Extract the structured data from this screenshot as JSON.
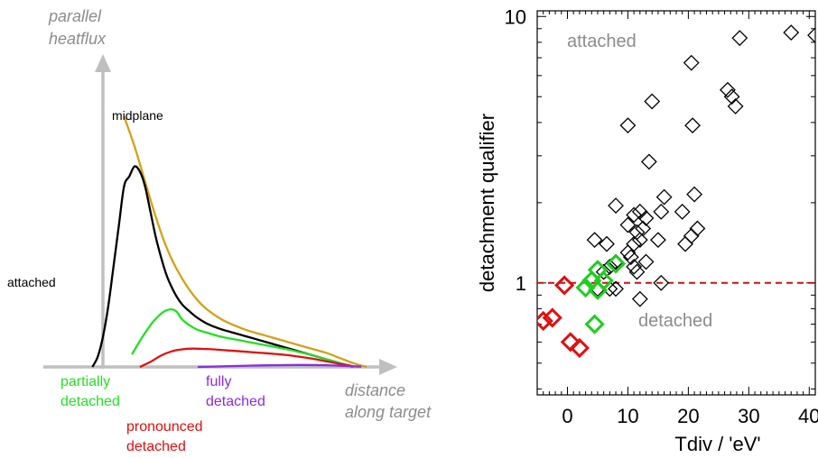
{
  "chart_data": [
    {
      "type": "line",
      "schematic": true,
      "axes": {
        "ylabel_line1": "parallel",
        "ylabel_line2": "heatflux",
        "xlabel_line1": "distance",
        "xlabel_line2": "along target",
        "axis_color": "#bfbfbf",
        "label_color": "#8c8c8c"
      },
      "annotations": {
        "midplane": "midplane",
        "attached": "attached",
        "partially_line1": "partially",
        "partially_line2": "detached",
        "pronounced_line1": "pronounced",
        "pronounced_line2": "detached",
        "fully_line1": "fully",
        "fully_line2": "detached"
      },
      "series": [
        {
          "key": "midplane",
          "color": "#d4a017",
          "x": [
            0.08,
            0.12,
            0.16,
            0.2,
            0.24,
            0.28,
            0.32,
            0.36,
            0.4,
            0.45,
            0.5,
            0.55,
            0.6,
            0.65,
            0.7,
            0.75,
            0.8,
            0.85,
            0.9,
            0.95,
            1.0
          ],
          "y": [
            1.0,
            0.88,
            0.74,
            0.6,
            0.48,
            0.39,
            0.32,
            0.265,
            0.225,
            0.19,
            0.165,
            0.145,
            0.13,
            0.115,
            0.1,
            0.085,
            0.07,
            0.055,
            0.035,
            0.015,
            0.0
          ]
        },
        {
          "key": "attached",
          "color": "#000000",
          "x": [
            -0.04,
            -0.02,
            0.0,
            0.02,
            0.04,
            0.06,
            0.08,
            0.1,
            0.12,
            0.14,
            0.16,
            0.18,
            0.2,
            0.22,
            0.24,
            0.26,
            0.28,
            0.3,
            0.33,
            0.36,
            0.4,
            0.45,
            0.5,
            0.55,
            0.6,
            0.65,
            0.7,
            0.75,
            0.8,
            0.85,
            0.9,
            0.95
          ],
          "y": [
            0.0,
            0.04,
            0.12,
            0.24,
            0.4,
            0.56,
            0.72,
            0.76,
            0.8,
            0.78,
            0.72,
            0.62,
            0.52,
            0.44,
            0.37,
            0.32,
            0.28,
            0.25,
            0.22,
            0.195,
            0.17,
            0.15,
            0.135,
            0.12,
            0.105,
            0.09,
            0.075,
            0.06,
            0.045,
            0.03,
            0.015,
            0.0
          ]
        },
        {
          "key": "partially_detached",
          "color": "#22e022",
          "x": [
            0.11,
            0.15,
            0.19,
            0.23,
            0.26,
            0.28,
            0.3,
            0.33,
            0.36,
            0.4,
            0.45,
            0.5,
            0.55,
            0.6,
            0.65,
            0.7,
            0.75,
            0.8,
            0.85,
            0.9,
            0.95
          ],
          "y": [
            0.05,
            0.12,
            0.18,
            0.22,
            0.23,
            0.22,
            0.19,
            0.165,
            0.148,
            0.135,
            0.12,
            0.11,
            0.1,
            0.09,
            0.08,
            0.07,
            0.058,
            0.045,
            0.03,
            0.015,
            0.0
          ]
        },
        {
          "key": "pronounced_detached",
          "color": "#e01010",
          "x": [
            0.14,
            0.18,
            0.22,
            0.26,
            0.3,
            0.34,
            0.38,
            0.42,
            0.46,
            0.5,
            0.55,
            0.6,
            0.65,
            0.7,
            0.75,
            0.8,
            0.85,
            0.9,
            0.95
          ],
          "y": [
            0.0,
            0.02,
            0.045,
            0.062,
            0.07,
            0.073,
            0.072,
            0.07,
            0.067,
            0.064,
            0.06,
            0.056,
            0.052,
            0.047,
            0.04,
            0.032,
            0.022,
            0.012,
            0.003
          ]
        },
        {
          "key": "fully_detached",
          "color": "#8a2be2",
          "x": [
            0.36,
            0.45,
            0.55,
            0.65,
            0.75,
            0.85,
            0.92,
            0.98
          ],
          "y": [
            0.0,
            0.002,
            0.005,
            0.007,
            0.008,
            0.007,
            0.004,
            0.001
          ]
        }
      ]
    },
    {
      "type": "scatter",
      "xlabel": "Tdiv / 'eV'",
      "ylabel": "detachment qualifier",
      "xlim": [
        -5,
        41
      ],
      "ylim": [
        0.38,
        10.5
      ],
      "yscale": "log",
      "xticks": [
        0,
        10,
        20,
        30,
        40
      ],
      "yticks": [
        1,
        10
      ],
      "region_labels": {
        "upper": "attached",
        "lower": "detached"
      },
      "threshold": {
        "y": 1,
        "color": "#cc1111",
        "style": "dashed"
      },
      "series": [
        {
          "key": "black",
          "color": "#000000",
          "points": [
            [
              37,
              8.7
            ],
            [
              41,
              8.5
            ],
            [
              28.5,
              8.3
            ],
            [
              20.5,
              6.7
            ],
            [
              26.5,
              5.3
            ],
            [
              27.2,
              5.0
            ],
            [
              27.8,
              4.6
            ],
            [
              14,
              4.8
            ],
            [
              10,
              3.9
            ],
            [
              20.7,
              3.9
            ],
            [
              13.5,
              2.85
            ],
            [
              8,
              1.95
            ],
            [
              16,
              2.1
            ],
            [
              21,
              2.15
            ],
            [
              11,
              1.8
            ],
            [
              12,
              1.85
            ],
            [
              13,
              1.75
            ],
            [
              15.5,
              1.85
            ],
            [
              19,
              1.85
            ],
            [
              10,
              1.65
            ],
            [
              11.5,
              1.55
            ],
            [
              12.5,
              1.6
            ],
            [
              21.5,
              1.6
            ],
            [
              4.5,
              1.45
            ],
            [
              6.5,
              1.4
            ],
            [
              11,
              1.4
            ],
            [
              12,
              1.45
            ],
            [
              15,
              1.45
            ],
            [
              19.5,
              1.4
            ],
            [
              20.5,
              1.5
            ],
            [
              10,
              1.3
            ],
            [
              10.5,
              1.25
            ],
            [
              8,
              1.2
            ],
            [
              11,
              1.15
            ],
            [
              13,
              1.2
            ],
            [
              6,
              1.1
            ],
            [
              7,
              1.15
            ],
            [
              11.5,
              1.1
            ],
            [
              15.5,
              1.0
            ],
            [
              5,
              0.95
            ],
            [
              7,
              0.95
            ],
            [
              8,
              0.95
            ],
            [
              12,
              0.87
            ]
          ]
        },
        {
          "key": "green",
          "color": "#22cc22",
          "points": [
            [
              5,
              1.12
            ],
            [
              8,
              1.18
            ],
            [
              4,
              1.02
            ],
            [
              6,
              1.02
            ],
            [
              3,
              0.96
            ],
            [
              5,
              0.94
            ],
            [
              4.5,
              0.7
            ]
          ]
        },
        {
          "key": "red",
          "color": "#dd1111",
          "points": [
            [
              -0.5,
              0.98
            ],
            [
              -4,
              0.72
            ],
            [
              -2.5,
              0.74
            ],
            [
              0.5,
              0.6
            ],
            [
              2,
              0.57
            ]
          ]
        }
      ]
    }
  ]
}
